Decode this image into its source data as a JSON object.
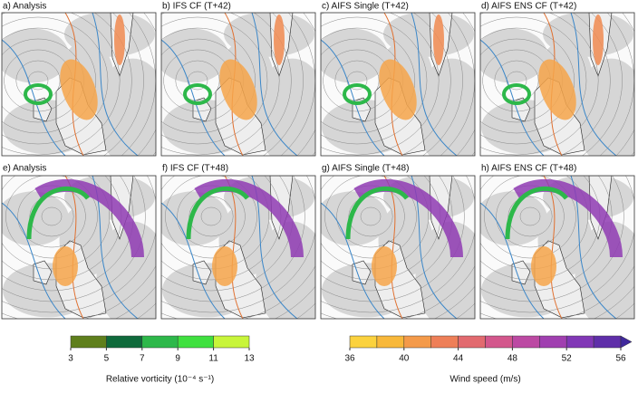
{
  "panels": [
    {
      "title": "a) Analysis"
    },
    {
      "title": "b) IFS CF (T+42)"
    },
    {
      "title": "c) AIFS Single (T+42)"
    },
    {
      "title": "d) AIFS ENS CF (T+42)"
    },
    {
      "title": "e) Analysis"
    },
    {
      "title": "f) IFS CF (T+48)"
    },
    {
      "title": "g) AIFS Single (T+48)"
    },
    {
      "title": "h) AIFS ENS CF (T+48)"
    }
  ],
  "colorbars": [
    {
      "label": "Relative vorticity (10⁻⁴ s⁻¹)",
      "lim": [
        3,
        13
      ],
      "ticks": [
        3,
        5,
        7,
        9,
        11,
        13
      ],
      "colors": [
        "#5f7f1c",
        "#0f6a3b",
        "#2db84a",
        "#3fe03f",
        "#c8f53a"
      ]
    },
    {
      "label": "Wind speed (m/s)",
      "lim": [
        36,
        56
      ],
      "ticks": [
        36,
        40,
        44,
        48,
        52,
        56
      ],
      "colors": [
        "#fbd23e",
        "#f8b83a",
        "#f49a4a",
        "#ee7f58",
        "#e26a6f",
        "#d3578c",
        "#bc49a3",
        "#a03fb0",
        "#8137b6",
        "#5f2ea9"
      ],
      "extend_color": "#40299c"
    }
  ]
}
